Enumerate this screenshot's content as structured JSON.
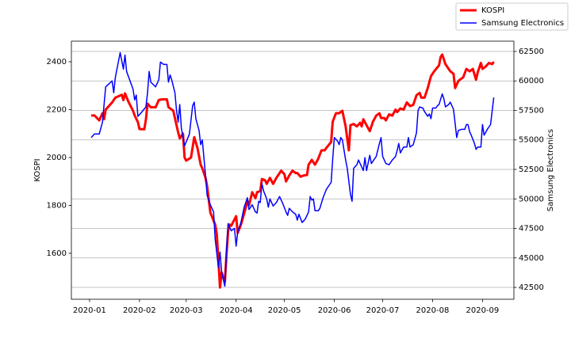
{
  "chart_data": {
    "type": "line",
    "xlim": [
      -11.3,
      263.5
    ],
    "xticks": [
      {
        "value": 0,
        "label": "2020-01"
      },
      {
        "value": 31,
        "label": "2020-02"
      },
      {
        "value": 60,
        "label": "2020-03"
      },
      {
        "value": 91,
        "label": "2020-04"
      },
      {
        "value": 121,
        "label": "2020-05"
      },
      {
        "value": 152,
        "label": "2020-06"
      },
      {
        "value": 182,
        "label": "2020-07"
      },
      {
        "value": 213,
        "label": "2020-08"
      },
      {
        "value": 244,
        "label": "2020-09"
      }
    ],
    "ylabel": "KOSPI",
    "ylim": [
      1408,
      2486
    ],
    "yticks": [
      1600,
      1800,
      2000,
      2200,
      2400
    ],
    "y2label": "Samsung Electronics",
    "y2lim": [
      41495,
      63371
    ],
    "y2ticks": [
      42500,
      45000,
      47500,
      50000,
      52500,
      55000,
      57500,
      60000,
      62500
    ],
    "grid": "y2",
    "legend": "upper right",
    "series": [
      {
        "name": "KOSPI",
        "color": "#ff0000",
        "axis": "y",
        "x": [
          1,
          3,
          6,
          8,
          9,
          10,
          14,
          16,
          20,
          21,
          22,
          24,
          27,
          28,
          30,
          31,
          34,
          35,
          36,
          38,
          41,
          43,
          45,
          48,
          49,
          52,
          55,
          56,
          58,
          59,
          60,
          63,
          65,
          67,
          69,
          70,
          72,
          73,
          75,
          78,
          79,
          80,
          81,
          82,
          84,
          85,
          86,
          87,
          88,
          91,
          92,
          94,
          97,
          98,
          99,
          101,
          103,
          104,
          106,
          107,
          109,
          110,
          112,
          114,
          116,
          119,
          121,
          122,
          124,
          126,
          128,
          129,
          131,
          133,
          135,
          136,
          138,
          140,
          142,
          144,
          146,
          147,
          150,
          151,
          153,
          155,
          157,
          159,
          161,
          162,
          164,
          166,
          168,
          169,
          170,
          172,
          174,
          176,
          178,
          180,
          181,
          183,
          184,
          186,
          188,
          190,
          191,
          193,
          195,
          197,
          199,
          201,
          203,
          205,
          206,
          208,
          210,
          212,
          214,
          217,
          218,
          219,
          221,
          223,
          224,
          226,
          227,
          229,
          232,
          234,
          236,
          238,
          240,
          241,
          243,
          244,
          246,
          248,
          250,
          251
        ],
        "values": [
          2175,
          2176,
          2155,
          2185,
          2160,
          2200,
          2230,
          2250,
          2262,
          2240,
          2268,
          2235,
          2195,
          2176,
          2148,
          2119,
          2118,
          2160,
          2225,
          2210,
          2210,
          2240,
          2243,
          2243,
          2210,
          2195,
          2105,
          2080,
          2100,
          2000,
          1987,
          2000,
          2085,
          2040,
          1970,
          1955,
          1915,
          1880,
          1770,
          1720,
          1680,
          1570,
          1457,
          1520,
          1480,
          1590,
          1690,
          1720,
          1715,
          1755,
          1685,
          1720,
          1790,
          1820,
          1800,
          1855,
          1830,
          1855,
          1860,
          1910,
          1905,
          1890,
          1915,
          1890,
          1915,
          1945,
          1930,
          1900,
          1925,
          1945,
          1935,
          1935,
          1920,
          1925,
          1927,
          1970,
          1990,
          1970,
          1995,
          2030,
          2030,
          2040,
          2065,
          2150,
          2185,
          2185,
          2195,
          2130,
          2030,
          2135,
          2140,
          2130,
          2145,
          2130,
          2160,
          2135,
          2110,
          2150,
          2175,
          2185,
          2165,
          2165,
          2155,
          2180,
          2175,
          2200,
          2190,
          2205,
          2200,
          2230,
          2215,
          2220,
          2260,
          2270,
          2250,
          2250,
          2290,
          2340,
          2360,
          2385,
          2420,
          2430,
          2390,
          2370,
          2360,
          2350,
          2290,
          2320,
          2335,
          2370,
          2360,
          2370,
          2325,
          2355,
          2395,
          2370,
          2380,
          2395,
          2390,
          2400
        ]
      },
      {
        "name": "Samsung Electronics",
        "color": "#0000ff",
        "axis": "y2",
        "x": [
          1,
          3,
          6,
          8,
          9,
          10,
          14,
          15,
          16,
          19,
          21,
          22,
          23,
          27,
          28,
          29,
          30,
          32,
          35,
          36,
          37,
          38,
          41,
          43,
          44,
          46,
          48,
          49,
          50,
          51,
          53,
          54,
          55,
          56,
          57,
          59,
          62,
          64,
          65,
          66,
          68,
          69,
          70,
          72,
          73,
          75,
          77,
          78,
          80,
          81,
          82,
          84,
          85,
          86,
          88,
          90,
          91,
          92,
          94,
          96,
          98,
          99,
          101,
          103,
          104,
          105,
          106,
          107,
          108,
          110,
          111,
          112,
          114,
          116,
          118,
          120,
          122,
          123,
          124,
          126,
          128,
          129,
          130,
          132,
          134,
          136,
          137,
          138,
          139,
          140,
          142,
          143,
          145,
          147,
          149,
          150,
          151,
          152,
          154,
          155,
          156,
          157,
          159,
          160,
          162,
          163,
          164,
          166,
          167,
          168,
          170,
          171,
          172,
          174,
          175,
          176,
          178,
          180,
          181,
          182,
          184,
          186,
          188,
          190,
          191,
          192,
          193,
          195,
          197,
          198,
          199,
          201,
          203,
          204,
          205,
          207,
          208,
          210,
          211,
          212,
          213,
          215,
          216,
          217,
          219,
          220,
          221,
          223,
          224,
          226,
          227,
          228,
          229,
          231,
          233,
          234,
          235,
          236,
          237,
          239,
          240,
          241,
          243,
          244,
          245,
          247,
          249,
          251
        ],
        "values": [
          55200,
          55500,
          55500,
          56500,
          58000,
          59500,
          60000,
          59000,
          60300,
          62400,
          61000,
          62200,
          60800,
          59300,
          58400,
          58800,
          57000,
          57300,
          57800,
          59000,
          60800,
          59900,
          59500,
          60100,
          61600,
          61400,
          61400,
          59900,
          60500,
          60100,
          59000,
          57500,
          56500,
          58000,
          56000,
          54500,
          55500,
          57900,
          58200,
          56800,
          55800,
          54600,
          55000,
          52000,
          50300,
          49500,
          48900,
          46600,
          44200,
          45500,
          43800,
          42600,
          45500,
          47900,
          47300,
          47500,
          46000,
          47200,
          48000,
          49300,
          50100,
          49100,
          49500,
          48900,
          48800,
          49800,
          49700,
          51300,
          50700,
          50000,
          49300,
          50000,
          49400,
          49700,
          50200,
          49600,
          48900,
          48600,
          49200,
          48900,
          48700,
          48200,
          48700,
          48000,
          48300,
          48900,
          50200,
          49900,
          50000,
          49000,
          49000,
          49200,
          50100,
          50800,
          51200,
          51400,
          53400,
          55200,
          54900,
          54600,
          55200,
          55000,
          53300,
          52600,
          50400,
          49800,
          52600,
          52900,
          53300,
          53000,
          52400,
          53500,
          52400,
          53700,
          53000,
          53200,
          53600,
          54700,
          55200,
          53600,
          53000,
          52900,
          53300,
          53600,
          54100,
          54700,
          53900,
          54400,
          54400,
          55200,
          54400,
          54600,
          55600,
          57500,
          57800,
          57700,
          57400,
          57000,
          57200,
          56800,
          57700,
          57700,
          57900,
          58000,
          58900,
          58500,
          57800,
          58000,
          58200,
          57600,
          56400,
          55200,
          55800,
          55900,
          55900,
          56300,
          56300,
          55700,
          55400,
          54700,
          54200,
          54400,
          54400,
          56300,
          55400,
          55900,
          56300,
          58600
        ]
      }
    ]
  }
}
